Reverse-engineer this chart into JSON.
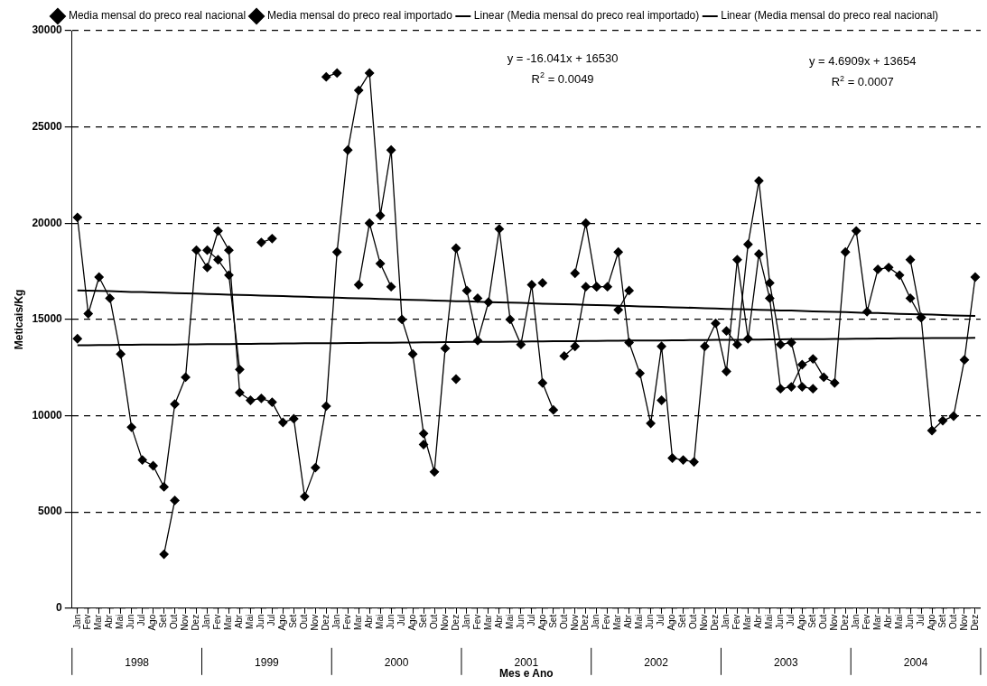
{
  "chart_data": {
    "type": "line",
    "xlabel": "Mes e Ano",
    "ylabel": "Meticais/Kg",
    "categories": [
      "Jan",
      "Fev",
      "Mar",
      "Abr",
      "Mai",
      "Jun",
      "Jul",
      "Ago",
      "Set",
      "Out",
      "Nov",
      "Dez",
      "Jan",
      "Fev",
      "Mar",
      "Abr",
      "Mai",
      "Jun",
      "Jul",
      "Ago",
      "Set",
      "Out",
      "Nov",
      "Dez",
      "Jan",
      "Fev",
      "Mar",
      "Abr",
      "Mai",
      "Jun",
      "Jul",
      "Ago",
      "Set",
      "Out",
      "Nov",
      "Dez",
      "Jan",
      "Fev",
      "Mar",
      "Abr",
      "Mai",
      "Jun",
      "Jul",
      "Ago",
      "Set",
      "Out",
      "Nov",
      "Dez",
      "Jan",
      "Fev",
      "Mar",
      "Abr",
      "Mai",
      "Jun",
      "Jul",
      "Ago",
      "Set",
      "Out",
      "Nov",
      "Dez",
      "Jan",
      "Fev",
      "Mar",
      "Abr",
      "Mai",
      "Jun",
      "Jul",
      "Ago",
      "Set",
      "Out",
      "Nov",
      "Dez",
      "Jan",
      "Fev",
      "Mar",
      "Abr",
      "Mai",
      "Jun",
      "Jul",
      "Ago",
      "Set",
      "Out",
      "Nov",
      "Dez"
    ],
    "series": [
      {
        "name": "Media mensal do preco real nacional",
        "color": "#000000",
        "values": [
          20300,
          15300,
          17200,
          16100,
          13200,
          9400,
          7700,
          7400,
          6300,
          10600,
          12000,
          18600,
          17700,
          19600,
          18600,
          11200,
          10800,
          10900,
          10700,
          9650,
          9840,
          5800,
          7300,
          10500,
          18500,
          23800,
          26900,
          27800,
          20400,
          23800,
          15000,
          13200,
          9070,
          7080,
          13500,
          18700,
          16500,
          13900,
          15900,
          19700,
          15000,
          13700,
          16800,
          11700,
          10300,
          null,
          17400,
          20000,
          16700,
          16700,
          18500,
          13800,
          12200,
          9600,
          13600,
          7800,
          7700,
          7600,
          13600,
          14800,
          12300,
          18100,
          14000,
          18400,
          16100,
          11400,
          11500,
          12650,
          12950,
          12000,
          11700,
          18500,
          19600,
          15400,
          17600,
          17700,
          17300,
          16100,
          15100,
          9230,
          9740,
          9980,
          12900,
          17200
        ]
      },
      {
        "name": "Media mensal do preco real importado",
        "color": "#000000",
        "values": [
          14000,
          null,
          null,
          null,
          null,
          null,
          null,
          null,
          2800,
          5600,
          null,
          null,
          18600,
          18100,
          17300,
          12400,
          null,
          19000,
          19200,
          null,
          null,
          null,
          null,
          27600,
          27800,
          null,
          16800,
          20000,
          17900,
          16700,
          null,
          null,
          8500,
          null,
          null,
          11900,
          null,
          16100,
          null,
          null,
          null,
          null,
          null,
          16900,
          null,
          13100,
          13600,
          16700,
          16700,
          null,
          15500,
          16500,
          null,
          null,
          10800,
          null,
          null,
          null,
          null,
          null,
          14400,
          13700,
          18900,
          22200,
          16900,
          13700,
          13800,
          11500,
          11400,
          null,
          null,
          null,
          null,
          null,
          null,
          null,
          null,
          18100,
          15100,
          null,
          null,
          null,
          null,
          null
        ]
      },
      {
        "name": "Linear (Media mensal do preco real importado)",
        "color": "#000000",
        "type": "line",
        "marker": "none",
        "values": [
          16510,
          16500,
          16480,
          16470,
          16450,
          16430,
          16420,
          16400,
          16390,
          16370,
          16350,
          16340,
          16320,
          16310,
          16290,
          16270,
          16260,
          16240,
          16230,
          16210,
          16190,
          16180,
          16160,
          16150,
          16130,
          16110,
          16100,
          16080,
          16060,
          16050,
          16030,
          16020,
          16000,
          15980,
          15970,
          15950,
          15940,
          15920,
          15900,
          15890,
          15870,
          15860,
          15840,
          15820,
          15810,
          15790,
          15780,
          15760,
          15740,
          15730,
          15710,
          15700,
          15680,
          15660,
          15650,
          15630,
          15620,
          15600,
          15580,
          15570,
          15550,
          15540,
          15520,
          15500,
          15490,
          15470,
          15460,
          15440,
          15420,
          15410,
          15390,
          15380,
          15360,
          15340,
          15330,
          15310,
          15290,
          15280,
          15260,
          15250,
          15230,
          15210,
          15200,
          15180
        ]
      },
      {
        "name": "Linear (Media mensal do preco real nacional)",
        "color": "#000000",
        "type": "line",
        "marker": "none",
        "values": [
          13660,
          13660,
          13670,
          13670,
          13680,
          13680,
          13690,
          13690,
          13700,
          13700,
          13710,
          13710,
          13720,
          13720,
          13720,
          13730,
          13730,
          13740,
          13740,
          13750,
          13750,
          13760,
          13760,
          13770,
          13770,
          13780,
          13780,
          13790,
          13790,
          13790,
          13800,
          13800,
          13810,
          13810,
          13820,
          13820,
          13830,
          13830,
          13840,
          13840,
          13850,
          13850,
          13860,
          13860,
          13870,
          13870,
          13870,
          13880,
          13880,
          13890,
          13890,
          13900,
          13900,
          13910,
          13910,
          13920,
          13920,
          13930,
          13930,
          13940,
          13940,
          13940,
          13950,
          13950,
          13960,
          13960,
          13970,
          13970,
          13980,
          13980,
          13990,
          13990,
          14000,
          14000,
          14010,
          14010,
          14020,
          14020,
          14020,
          14030,
          14030,
          14040,
          14040,
          14050
        ]
      }
    ],
    "ylim": [
      0,
      30000
    ],
    "yticks": [
      0,
      5000,
      10000,
      15000,
      20000,
      25000,
      30000
    ],
    "grid": "y",
    "legend": "top",
    "marker": "diamond",
    "line_style": "solid",
    "annotations": [
      "y = -16.041x + 16530",
      "R$^{2}$ = 0.0049",
      "y = 4.6909x + 13654",
      "R$^{2}$ = 0.0007",
      "1998",
      "1999",
      "2000",
      "2001",
      "2002",
      "2003",
      "2004"
    ]
  }
}
